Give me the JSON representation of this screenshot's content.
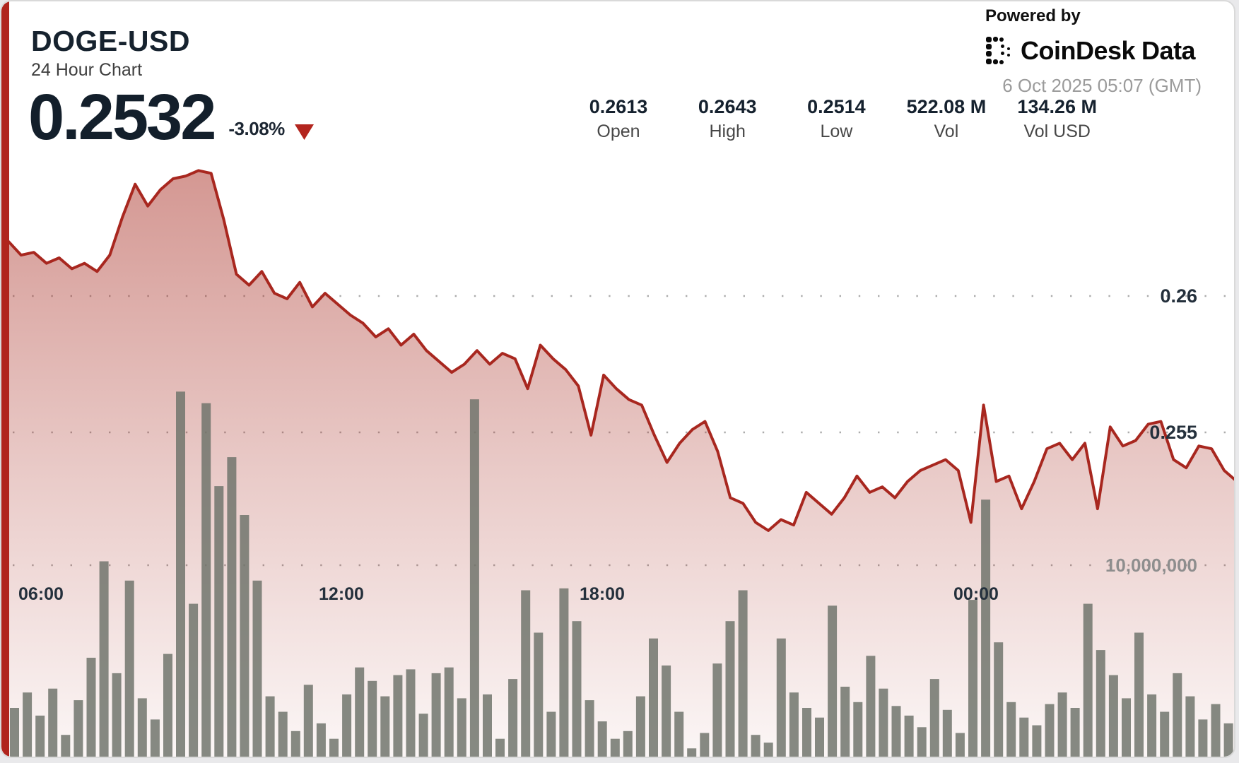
{
  "window": {
    "background": "#e9e9eb"
  },
  "card": {
    "background": "#ffffff",
    "border": "#d9d9d9",
    "accent_stripe": "#b0241d"
  },
  "header": {
    "symbol": "DOGE-USD",
    "subtitle": "24 Hour Chart",
    "price": "0.2532",
    "change": "-3.08%",
    "direction": "down",
    "down_triangle_color": "#b3251e"
  },
  "stats": [
    {
      "value": "0.2613",
      "label": "Open"
    },
    {
      "value": "0.2643",
      "label": "High"
    },
    {
      "value": "0.2514",
      "label": "Low"
    },
    {
      "value": "522.08 M",
      "label": "Vol"
    },
    {
      "value": "134.26 M",
      "label": "Vol USD"
    }
  ],
  "attribution": {
    "powered_by": "Powered by",
    "brand": "CoinDesk",
    "brand_suffix": "Data",
    "timestamp": "6 Oct 2025 05:07 (GMT)"
  },
  "chart_data": {
    "type": "area",
    "title": "DOGE-USD 24 Hour Chart",
    "legend": "none",
    "grid": "dotted-horizontal",
    "interval_minutes": 15,
    "open": 0.2613,
    "high": 0.2643,
    "low": 0.2514,
    "last": 0.2532,
    "price_line_color": "#a8271f",
    "area_fill_color": "#a93026",
    "volume_bar_color": "#6f746b",
    "grid_dot_color": "#9e9e9e",
    "price_axis": {
      "ticks": [
        {
          "label": "0.26",
          "value": 0.26
        },
        {
          "label": "0.255",
          "value": 0.255
        }
      ]
    },
    "volume_axis": {
      "ticks": [
        {
          "label": "10,000,000",
          "value": 10
        }
      ]
    },
    "x_ticks": [
      {
        "label": "06:00",
        "pos": 0.032
      },
      {
        "label": "12:00",
        "pos": 0.275
      },
      {
        "label": "18:00",
        "pos": 0.486
      },
      {
        "label": "00:00",
        "pos": 0.789
      }
    ],
    "prices": [
      0.262,
      0.2615,
      0.2616,
      0.2612,
      0.2614,
      0.261,
      0.2612,
      0.2609,
      0.2615,
      0.2629,
      0.2641,
      0.2633,
      0.2639,
      0.2643,
      0.2644,
      0.2646,
      0.2645,
      0.2628,
      0.2608,
      0.2604,
      0.2609,
      0.2601,
      0.2599,
      0.2605,
      0.2596,
      0.2601,
      0.2597,
      0.2593,
      0.259,
      0.2585,
      0.2588,
      0.2582,
      0.2586,
      0.258,
      0.2576,
      0.2572,
      0.2575,
      0.258,
      0.2575,
      0.2579,
      0.2577,
      0.2566,
      0.2582,
      0.2577,
      0.2573,
      0.2567,
      0.2549,
      0.2571,
      0.2566,
      0.2562,
      0.256,
      0.2549,
      0.2539,
      0.2546,
      0.2551,
      0.2554,
      0.2543,
      0.2526,
      0.2524,
      0.2517,
      0.2514,
      0.2518,
      0.2516,
      0.2528,
      0.2524,
      0.252,
      0.2526,
      0.2534,
      0.2528,
      0.253,
      0.2526,
      0.2532,
      0.2536,
      0.2538,
      0.254,
      0.2536,
      0.2517,
      0.256,
      0.2532,
      0.2534,
      0.2522,
      0.2532,
      0.2544,
      0.2546,
      0.254,
      0.2546,
      0.2522,
      0.2552,
      0.2545,
      0.2547,
      0.2553,
      0.2554,
      0.254,
      0.2537,
      0.2545,
      0.2544,
      0.2536,
      0.2532
    ],
    "volumes_millions": [
      2.6,
      3.4,
      2.2,
      3.6,
      1.2,
      3.0,
      5.2,
      10.2,
      4.4,
      9.2,
      3.1,
      2.0,
      5.4,
      19.0,
      8.0,
      18.4,
      14.1,
      15.6,
      12.6,
      9.2,
      3.2,
      2.4,
      1.4,
      3.8,
      1.8,
      1.0,
      3.3,
      4.7,
      4.0,
      3.2,
      4.3,
      4.6,
      2.3,
      4.4,
      4.7,
      3.1,
      18.6,
      3.3,
      1.0,
      4.1,
      8.7,
      6.5,
      2.4,
      8.8,
      7.1,
      3.0,
      1.9,
      1.0,
      1.4,
      3.2,
      6.2,
      4.8,
      2.4,
      0.5,
      1.3,
      4.9,
      7.1,
      8.7,
      1.2,
      0.8,
      6.2,
      3.4,
      2.6,
      2.1,
      7.9,
      3.7,
      2.9,
      5.3,
      3.6,
      2.7,
      2.2,
      1.6,
      4.1,
      2.5,
      1.3,
      8.2,
      13.4,
      6.0,
      2.9,
      2.1,
      1.7,
      2.8,
      3.4,
      2.6,
      8.0,
      5.6,
      4.3,
      3.1,
      6.5,
      3.3,
      2.4,
      4.4,
      3.2,
      2.0,
      2.8,
      1.8
    ]
  }
}
